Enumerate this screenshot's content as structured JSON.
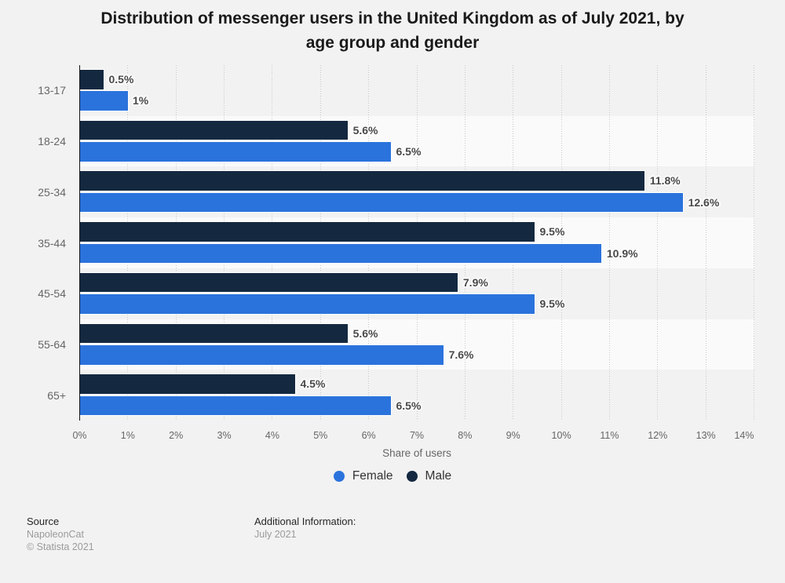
{
  "chart_data": {
    "type": "bar",
    "orientation": "horizontal",
    "title": "Distribution of messenger users in the United Kingdom as of July 2021, by age group and gender",
    "title_lines": [
      "Distribution of messenger users in the United Kingdom as of July 2021, by",
      "age group and gender"
    ],
    "categories": [
      "13-17",
      "18-24",
      "25-34",
      "35-44",
      "45-54",
      "55-64",
      "65+"
    ],
    "series": [
      {
        "name": "Male",
        "color": "#142940",
        "row": 0,
        "values": [
          0.5,
          5.6,
          11.8,
          9.5,
          7.9,
          5.6,
          4.5
        ],
        "labels": [
          "0.5%",
          "5.6%",
          "11.8%",
          "9.5%",
          "7.9%",
          "5.6%",
          "4.5%"
        ]
      },
      {
        "name": "Female",
        "color": "#2b73dc",
        "row": 1,
        "values": [
          1,
          6.5,
          12.6,
          10.9,
          9.5,
          7.6,
          6.5
        ],
        "labels": [
          "1%",
          "6.5%",
          "12.6%",
          "10.9%",
          "9.5%",
          "7.6%",
          "6.5%"
        ]
      }
    ],
    "xlabel": "Share of users",
    "xlim": [
      0,
      14
    ],
    "x_tick_labels": [
      "0%",
      "1%",
      "2%",
      "3%",
      "4%",
      "5%",
      "6%",
      "7%",
      "8%",
      "9%",
      "10%",
      "11%",
      "12%",
      "13%",
      "14%"
    ],
    "grid": "dotted-vertical",
    "legend_position": "bottom",
    "legend": [
      {
        "label": "Female",
        "color": "#2b73dc"
      },
      {
        "label": "Male",
        "color": "#142940"
      }
    ],
    "plot_band_color": "#fafafa",
    "background_color": "#f2f2f2"
  },
  "footer": {
    "source_label": "Source",
    "source_name": "NapoleonCat",
    "copyright": "© Statista 2021",
    "additional_label": "Additional Information:",
    "additional_value": "July 2021"
  }
}
